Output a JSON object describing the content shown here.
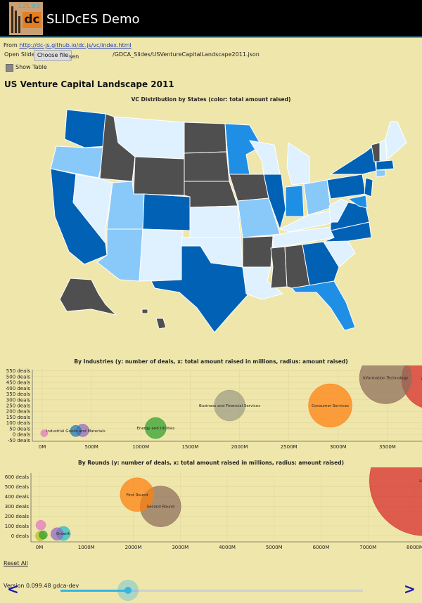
{
  "app": {
    "logo_text": "12Lab",
    "logo_mark": "dc",
    "title": "SLIDcES Demo",
    "accent": "#33b5e5"
  },
  "source": {
    "prefix": "From",
    "link": "http://dc-js.github.io/dc.js/vc/index.html"
  },
  "file": {
    "label": "Open Slides",
    "button": "Choose file",
    "trailing": "sen",
    "path": "/GDCA_Slides/USVentureCapitalLandscape2011.json"
  },
  "show_table": {
    "label": "Show Table",
    "checked": false
  },
  "slide_title": "US Venture Capital Landscape 2011",
  "map": {
    "title": "VC Distribution by States (color: total amount raised)",
    "colors": {
      "dark": "#4f4f4f",
      "blue": "#0061b5",
      "mid": "#1f8fe6",
      "light": "#88c9fa",
      "pale": "#dff1ff"
    }
  },
  "chart_data": [
    {
      "type": "scatter",
      "title": "By Industries (y: number of deals, x: total amount raised in millions, radius: amount raised)",
      "x_ticks": [
        "0M",
        "500M",
        "1000M",
        "1500M",
        "2000M",
        "2500M",
        "3000M",
        "3500M"
      ],
      "y_ticks": [
        "-50 deals",
        "0 deals",
        "50 deals",
        "100 deals",
        "150 deals",
        "200 deals",
        "250 deals",
        "300 deals",
        "350 deals",
        "400 deals",
        "450 deals",
        "500 deals",
        "550 deals"
      ],
      "xlim": [
        -100,
        3850
      ],
      "ylim": [
        -60,
        560
      ],
      "points": [
        {
          "label": "",
          "x": 20,
          "y": 10,
          "r": 5,
          "color": "#e377c2"
        },
        {
          "label": "Industrial Goods and Materials",
          "x": 340,
          "y": 30,
          "r": 8,
          "color": "#1f77b4"
        },
        {
          "label": "",
          "x": 410,
          "y": 35,
          "r": 9,
          "color": "#9467bd"
        },
        {
          "label": "Energy and Utilities",
          "x": 1150,
          "y": 55,
          "r": 15,
          "color": "#2ca02c"
        },
        {
          "label": "Business and Financial Services",
          "x": 1900,
          "y": 250,
          "r": 22,
          "color": "#9c9c85"
        },
        {
          "label": "Consumer Services",
          "x": 2920,
          "y": 250,
          "r": 31,
          "color": "#ff7f0e"
        },
        {
          "label": "Information Technology",
          "x": 3480,
          "y": 490,
          "r": 37,
          "color": "#8c6d5a"
        },
        {
          "label": "Healthcare",
          "x": 3950,
          "y": 480,
          "r": 43,
          "color": "#d62728"
        }
      ]
    },
    {
      "type": "scatter",
      "title": "By Rounds (y: number of deals, x: total amount raised in millions, radius: amount raised)",
      "x_ticks": [
        "0M",
        "1000M",
        "2000M",
        "3000M",
        "4000M",
        "5000M",
        "6000M",
        "7000M",
        "8000M"
      ],
      "y_ticks": [
        "0 deals",
        "100 deals",
        "200 deals",
        "300 deals",
        "400 deals",
        "500 deals",
        "600 deals"
      ],
      "xlim": [
        -180,
        8150
      ],
      "ylim": [
        -60,
        640
      ],
      "points": [
        {
          "label": "",
          "x": 30,
          "y": 110,
          "r": 7,
          "color": "#e377c2"
        },
        {
          "label": "",
          "x": 20,
          "y": 0,
          "r": 7,
          "color": "#bcbd22"
        },
        {
          "label": "",
          "x": 80,
          "y": 10,
          "r": 6,
          "color": "#2ca02c"
        },
        {
          "label": "",
          "x": 380,
          "y": 20,
          "r": 9,
          "color": "#9467bd"
        },
        {
          "label": "Growth",
          "x": 510,
          "y": 25,
          "r": 10,
          "color": "#17becf"
        },
        {
          "label": "First Round",
          "x": 2080,
          "y": 420,
          "r": 24,
          "color": "#ff7f0e"
        },
        {
          "label": "Second Round",
          "x": 2580,
          "y": 300,
          "r": 29,
          "color": "#8c6d5a"
        },
        {
          "label": "Later",
          "x": 8200,
          "y": 560,
          "r": 78,
          "color": "#d62728"
        }
      ]
    }
  ],
  "footer": {
    "reset": "Reset All",
    "version": "Version 0.099.48 gdca-dev",
    "prev": "<",
    "next": ">",
    "progress": 0.22
  }
}
